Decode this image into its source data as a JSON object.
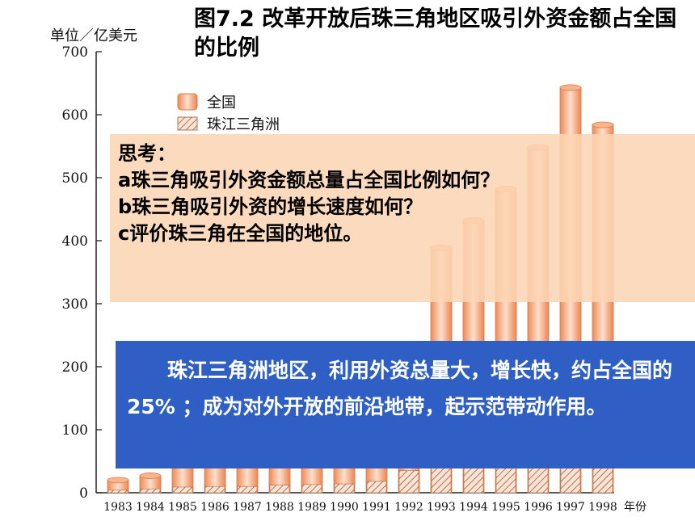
{
  "title": "图7.2 改革开放后珠三角地区吸引外资金额占全国的比例",
  "think": {
    "heading": "思考：",
    "q1": "a珠三角吸引外资金额总量占全国比例如何？",
    "q2": "b珠三角吸引外资的增长速度如何？",
    "q3": "c评价珠三角在全国的地位。"
  },
  "conclusion": "珠江三角洲地区，利用外资总量大，增长快，约占全国的25% ；成为对外开放的前沿地带，起示范带动作用。",
  "colors": {
    "national": "#f4a072",
    "highlight": "#fce0cc",
    "edge": "#e07a45",
    "pearl_hatch": "#9a5a3a",
    "think_box": "#fcd5b4",
    "concl_box": "#2f5fc4"
  },
  "chart_data": {
    "type": "bar",
    "ylabel": "单位／亿美元",
    "xlabel": "年份",
    "ylim": [
      0,
      700
    ],
    "yticks": [
      "0",
      "100",
      "200",
      "300",
      "400",
      "500",
      "600",
      "700"
    ],
    "categories": [
      "1983",
      "1984",
      "1985",
      "1986",
      "1987",
      "1988",
      "1989",
      "1990",
      "1991",
      "1992",
      "1993",
      "1994",
      "1995",
      "1996",
      "1997",
      "1998"
    ],
    "series": [
      {
        "name": "全国",
        "values": [
          20,
          27,
          46,
          76,
          84,
          100,
          100,
          102,
          116,
          192,
          389,
          432,
          482,
          548,
          643,
          584
        ]
      },
      {
        "name": "珠江三角洲",
        "values": [
          4,
          6,
          9,
          10,
          10,
          12,
          13,
          14,
          18,
          35,
          40,
          40,
          40,
          40,
          40,
          40
        ]
      }
    ],
    "legend": "top-left"
  }
}
